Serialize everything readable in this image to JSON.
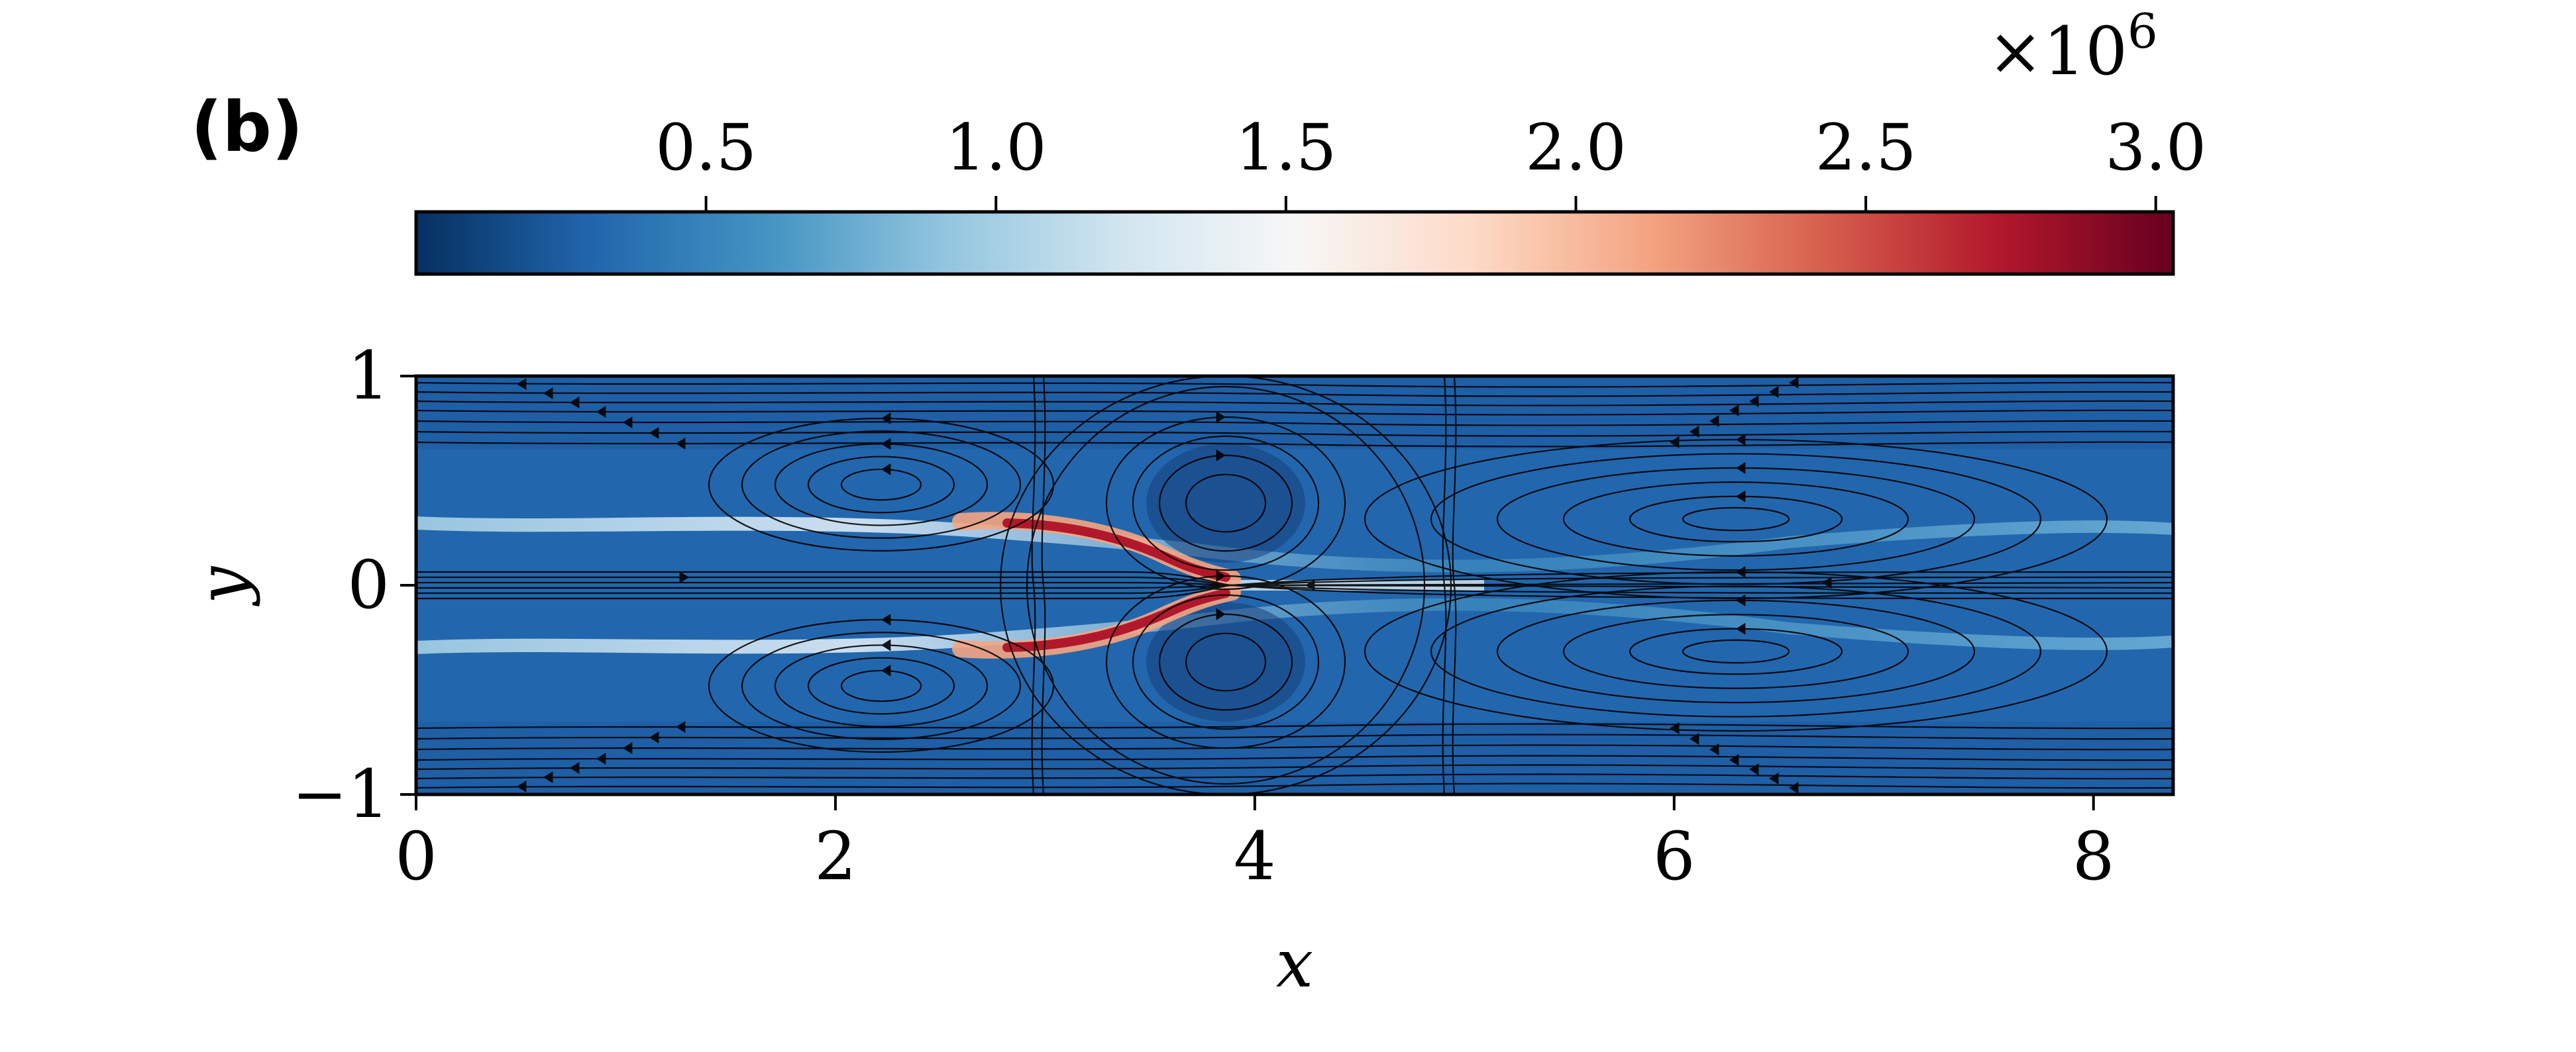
{
  "panel_label": "(b)",
  "colorbar": {
    "exponent_label": "×10",
    "exponent_power": "6",
    "ticks": [
      {
        "value": 0.5,
        "label": "0.5"
      },
      {
        "value": 1.0,
        "label": "1.0"
      },
      {
        "value": 1.5,
        "label": "1.5"
      },
      {
        "value": 2.0,
        "label": "2.0"
      },
      {
        "value": 2.5,
        "label": "2.5"
      },
      {
        "value": 3.0,
        "label": "3.0"
      }
    ],
    "range": [
      0,
      3.03
    ],
    "colormap": "RdBu_r",
    "stops": [
      "#053061",
      "#2166ac",
      "#4393c3",
      "#92c5de",
      "#d1e5f0",
      "#f7f7f7",
      "#fddbc7",
      "#f4a582",
      "#d6604d",
      "#b2182b",
      "#67001f"
    ]
  },
  "chart_data": {
    "type": "heatmap",
    "title": "",
    "xlabel": "x",
    "ylabel": "y",
    "xlim": [
      0,
      8.38
    ],
    "ylim": [
      -1,
      1
    ],
    "xticks": [
      {
        "value": 0,
        "label": "0"
      },
      {
        "value": 2,
        "label": "2"
      },
      {
        "value": 4,
        "label": "4"
      },
      {
        "value": 6,
        "label": "6"
      },
      {
        "value": 8,
        "label": "8"
      }
    ],
    "yticks": [
      {
        "value": 1,
        "label": "1"
      },
      {
        "value": 0,
        "label": "0"
      },
      {
        "value": -1,
        "label": "−1"
      }
    ],
    "overlay": "streamlines",
    "colorbar_units": "×10^6",
    "value_range": [
      0,
      3000000.0
    ],
    "features": [
      {
        "name": "upper-shear-band",
        "x": [
          0,
          8.38
        ],
        "y": 0.3,
        "level": "light-blue"
      },
      {
        "name": "lower-shear-band",
        "x": [
          0,
          8.38
        ],
        "y": -0.3,
        "level": "light-blue"
      },
      {
        "name": "upper-high-arc",
        "x": [
          2.6,
          3.8
        ],
        "y": [
          0.3,
          0.1
        ],
        "level_max": 3000000.0
      },
      {
        "name": "lower-high-arc",
        "x": [
          2.6,
          3.8
        ],
        "y": [
          -0.3,
          -0.1
        ],
        "level_max": 3000000.0
      },
      {
        "name": "vortex",
        "center": [
          2.2,
          0.45
        ],
        "sense": "ccw"
      },
      {
        "name": "vortex",
        "center": [
          2.2,
          -0.45
        ],
        "sense": "cw"
      },
      {
        "name": "vortex",
        "center": [
          3.8,
          0.35
        ],
        "sense": "cw"
      },
      {
        "name": "vortex",
        "center": [
          3.8,
          -0.35
        ],
        "sense": "ccw"
      },
      {
        "name": "vortex",
        "center": [
          6.3,
          0.3
        ],
        "sense": "ccw"
      },
      {
        "name": "vortex",
        "center": [
          6.3,
          -0.3
        ],
        "sense": "cw"
      }
    ]
  }
}
